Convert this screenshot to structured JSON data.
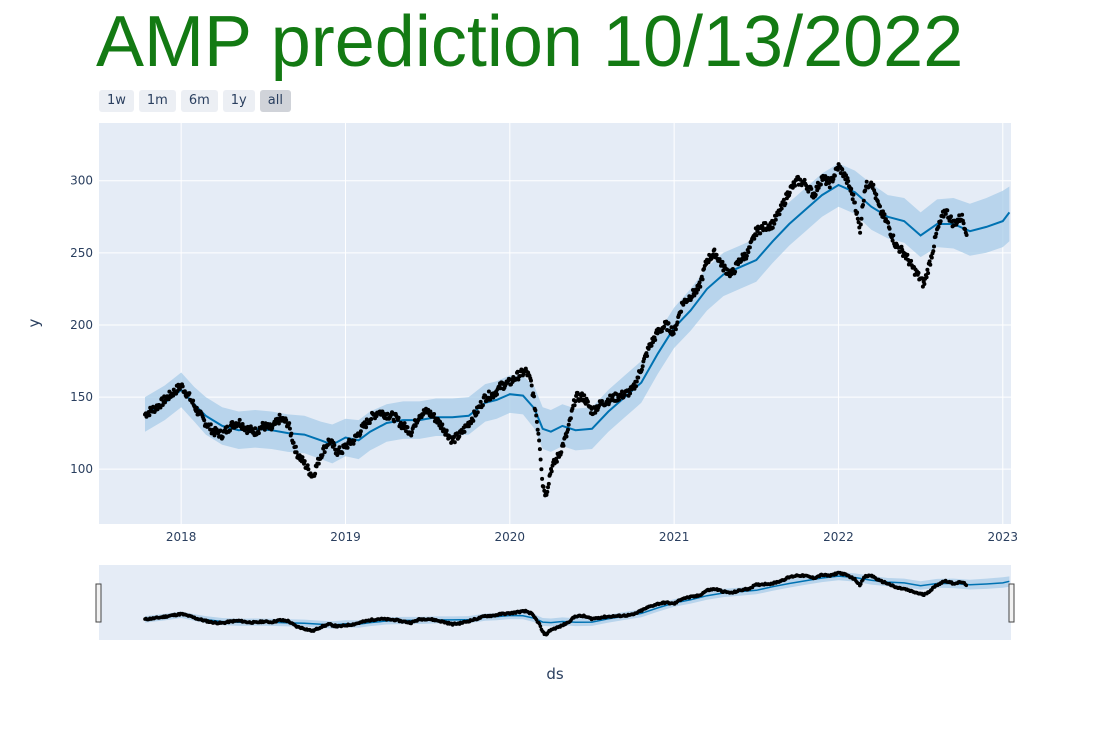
{
  "title": "AMP prediction 10/13/2022",
  "range_selector": {
    "buttons": [
      {
        "label": "1w",
        "active": false
      },
      {
        "label": "1m",
        "active": false
      },
      {
        "label": "6m",
        "active": false
      },
      {
        "label": "1y",
        "active": false
      },
      {
        "label": "all",
        "active": true
      }
    ]
  },
  "colors": {
    "background": "#e5ecf6",
    "forecast_line": "#0072b2",
    "uncertainty_band": "#a8cce8",
    "actual_points": "#000000",
    "title": "#137a13",
    "text": "#2a3f5f"
  },
  "chart_data": {
    "type": "line",
    "xlabel": "ds",
    "ylabel": "y",
    "xlim": [
      2017.5,
      2023.05
    ],
    "ylim": [
      62,
      340
    ],
    "x_ticks": [
      2018,
      2019,
      2020,
      2021,
      2022,
      2023
    ],
    "x_tick_labels": [
      "2018",
      "2019",
      "2020",
      "2021",
      "2022",
      "2023"
    ],
    "y_ticks": [
      100,
      150,
      200,
      250,
      300
    ],
    "y_tick_labels": [
      "100",
      "150",
      "200",
      "250",
      "300"
    ],
    "grid": true,
    "range_slider": true,
    "series": [
      {
        "kind": "actual",
        "x": [
          2017.78,
          2017.85,
          2017.92,
          2018.0,
          2018.05,
          2018.1,
          2018.15,
          2018.2,
          2018.25,
          2018.3,
          2018.35,
          2018.4,
          2018.45,
          2018.5,
          2018.55,
          2018.6,
          2018.65,
          2018.7,
          2018.75,
          2018.8,
          2018.85,
          2018.9,
          2018.95,
          2018.98,
          2019.0,
          2019.05,
          2019.1,
          2019.15,
          2019.2,
          2019.25,
          2019.3,
          2019.35,
          2019.4,
          2019.45,
          2019.5,
          2019.55,
          2019.6,
          2019.65,
          2019.7,
          2019.75,
          2019.8,
          2019.85,
          2019.9,
          2019.95,
          2020.0,
          2020.05,
          2020.1,
          2020.13,
          2020.16,
          2020.18,
          2020.2,
          2020.22,
          2020.25,
          2020.3,
          2020.35,
          2020.4,
          2020.45,
          2020.5,
          2020.55,
          2020.6,
          2020.65,
          2020.7,
          2020.75,
          2020.8,
          2020.85,
          2020.9,
          2020.95,
          2021.0,
          2021.05,
          2021.1,
          2021.15,
          2021.2,
          2021.25,
          2021.3,
          2021.35,
          2021.4,
          2021.45,
          2021.5,
          2021.55,
          2021.6,
          2021.65,
          2021.7,
          2021.75,
          2021.8,
          2021.85,
          2021.9,
          2021.95,
          2022.0,
          2022.03,
          2022.06,
          2022.1,
          2022.13,
          2022.16,
          2022.2,
          2022.25,
          2022.3,
          2022.35,
          2022.4,
          2022.45,
          2022.48,
          2022.52,
          2022.56,
          2022.6,
          2022.65,
          2022.7,
          2022.75,
          2022.78
        ],
        "values": [
          138,
          143,
          150,
          158,
          150,
          140,
          132,
          126,
          124,
          130,
          133,
          128,
          126,
          130,
          128,
          135,
          132,
          112,
          104,
          95,
          110,
          120,
          112,
          113,
          116,
          120,
          128,
          135,
          140,
          138,
          136,
          130,
          126,
          138,
          140,
          135,
          128,
          120,
          124,
          132,
          140,
          150,
          152,
          158,
          160,
          165,
          168,
          160,
          138,
          120,
          90,
          82,
          100,
          110,
          125,
          150,
          150,
          140,
          145,
          148,
          150,
          152,
          155,
          170,
          185,
          195,
          200,
          195,
          215,
          220,
          225,
          245,
          250,
          240,
          235,
          245,
          250,
          265,
          268,
          270,
          280,
          293,
          300,
          298,
          290,
          302,
          298,
          310,
          305,
          298,
          285,
          265,
          295,
          300,
          280,
          270,
          255,
          250,
          240,
          235,
          228,
          245,
          265,
          280,
          270,
          275,
          265
        ]
      },
      {
        "kind": "forecast",
        "x": [
          2017.78,
          2017.9,
          2018.0,
          2018.08,
          2018.15,
          2018.25,
          2018.35,
          2018.45,
          2018.55,
          2018.65,
          2018.75,
          2018.85,
          2018.92,
          2019.0,
          2019.08,
          2019.15,
          2019.25,
          2019.35,
          2019.45,
          2019.55,
          2019.65,
          2019.75,
          2019.85,
          2019.92,
          2020.0,
          2020.08,
          2020.15,
          2020.2,
          2020.25,
          2020.32,
          2020.4,
          2020.5,
          2020.6,
          2020.7,
          2020.8,
          2020.9,
          2021.0,
          2021.1,
          2021.2,
          2021.3,
          2021.4,
          2021.5,
          2021.6,
          2021.7,
          2021.8,
          2021.9,
          2022.0,
          2022.1,
          2022.2,
          2022.3,
          2022.4,
          2022.5,
          2022.6,
          2022.7,
          2022.8,
          2022.9,
          2023.0,
          2023.04
        ],
        "values": [
          138,
          146,
          155,
          145,
          137,
          130,
          127,
          128,
          127,
          125,
          124,
          120,
          117,
          122,
          120,
          126,
          132,
          134,
          134,
          136,
          136,
          137,
          146,
          148,
          152,
          151,
          142,
          128,
          126,
          130,
          127,
          128,
          140,
          150,
          160,
          180,
          198,
          210,
          225,
          235,
          240,
          245,
          258,
          270,
          280,
          290,
          297,
          292,
          282,
          275,
          272,
          262,
          270,
          270,
          265,
          268,
          272,
          278
        ]
      },
      {
        "kind": "upper_bound",
        "x": [
          2017.78,
          2017.9,
          2018.0,
          2018.08,
          2018.15,
          2018.25,
          2018.35,
          2018.45,
          2018.55,
          2018.65,
          2018.75,
          2018.85,
          2018.92,
          2019.0,
          2019.08,
          2019.15,
          2019.25,
          2019.35,
          2019.45,
          2019.55,
          2019.65,
          2019.75,
          2019.85,
          2019.92,
          2020.0,
          2020.08,
          2020.15,
          2020.2,
          2020.25,
          2020.32,
          2020.4,
          2020.5,
          2020.6,
          2020.7,
          2020.8,
          2020.9,
          2021.0,
          2021.1,
          2021.2,
          2021.3,
          2021.4,
          2021.5,
          2021.6,
          2021.7,
          2021.8,
          2021.9,
          2022.0,
          2022.1,
          2022.2,
          2022.3,
          2022.4,
          2022.5,
          2022.6,
          2022.7,
          2022.8,
          2022.9,
          2023.0,
          2023.04
        ],
        "values": [
          150,
          158,
          167,
          157,
          150,
          143,
          140,
          141,
          140,
          138,
          137,
          133,
          131,
          135,
          134,
          140,
          145,
          147,
          147,
          149,
          149,
          150,
          159,
          161,
          165,
          165,
          157,
          143,
          141,
          145,
          142,
          143,
          155,
          165,
          175,
          194,
          212,
          225,
          240,
          250,
          255,
          260,
          273,
          285,
          295,
          305,
          312,
          307,
          298,
          290,
          288,
          278,
          287,
          288,
          284,
          288,
          293,
          296
        ]
      },
      {
        "kind": "lower_bound",
        "x": [
          2017.78,
          2017.9,
          2018.0,
          2018.08,
          2018.15,
          2018.25,
          2018.35,
          2018.45,
          2018.55,
          2018.65,
          2018.75,
          2018.85,
          2018.92,
          2019.0,
          2019.08,
          2019.15,
          2019.25,
          2019.35,
          2019.45,
          2019.55,
          2019.65,
          2019.75,
          2019.85,
          2019.92,
          2020.0,
          2020.08,
          2020.15,
          2020.2,
          2020.25,
          2020.32,
          2020.4,
          2020.5,
          2020.6,
          2020.7,
          2020.8,
          2020.9,
          2021.0,
          2021.1,
          2021.2,
          2021.3,
          2021.4,
          2021.5,
          2021.6,
          2021.7,
          2021.8,
          2021.9,
          2022.0,
          2022.1,
          2022.2,
          2022.3,
          2022.4,
          2022.5,
          2022.6,
          2022.7,
          2022.8,
          2022.9,
          2023.0,
          2023.04
        ],
        "values": [
          126,
          134,
          143,
          133,
          124,
          117,
          114,
          115,
          114,
          112,
          111,
          107,
          104,
          109,
          107,
          113,
          119,
          121,
          121,
          123,
          123,
          124,
          133,
          135,
          139,
          138,
          128,
          114,
          112,
          116,
          113,
          114,
          126,
          136,
          146,
          166,
          184,
          196,
          210,
          220,
          225,
          230,
          243,
          255,
          265,
          275,
          282,
          277,
          266,
          260,
          257,
          247,
          254,
          253,
          248,
          250,
          254,
          258
        ]
      }
    ]
  }
}
